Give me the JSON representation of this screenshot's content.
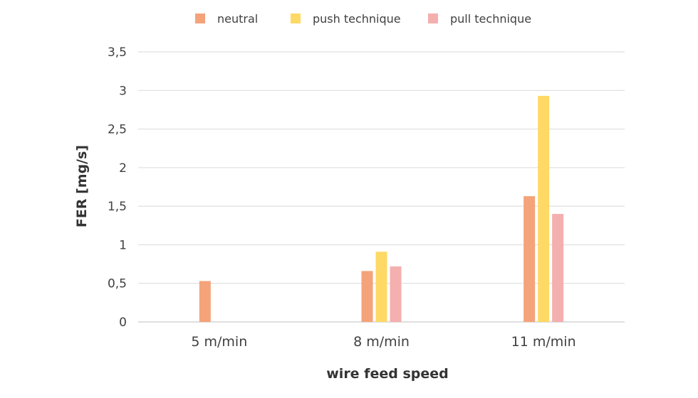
{
  "chart_data": {
    "type": "bar",
    "xlabel": "wire feed speed",
    "ylabel": "FER [mg/s]",
    "categories": [
      "5 m/min",
      "8 m/min",
      "11 m/min"
    ],
    "series": [
      {
        "name": "neutral",
        "color": "#F4A37A",
        "values": [
          0.53,
          0.66,
          1.63
        ]
      },
      {
        "name": "push technique",
        "color": "#FFD966",
        "values": [
          null,
          0.91,
          2.93
        ]
      },
      {
        "name": "pull technique",
        "color": "#F4AFAF",
        "values": [
          null,
          0.72,
          1.4
        ]
      }
    ],
    "ylim": [
      0,
      3.5
    ],
    "yticks": [
      "0",
      "0,5",
      "1",
      "1,5",
      "2",
      "2,5",
      "3",
      "3,5"
    ],
    "grid": true,
    "legend_position": "top"
  }
}
